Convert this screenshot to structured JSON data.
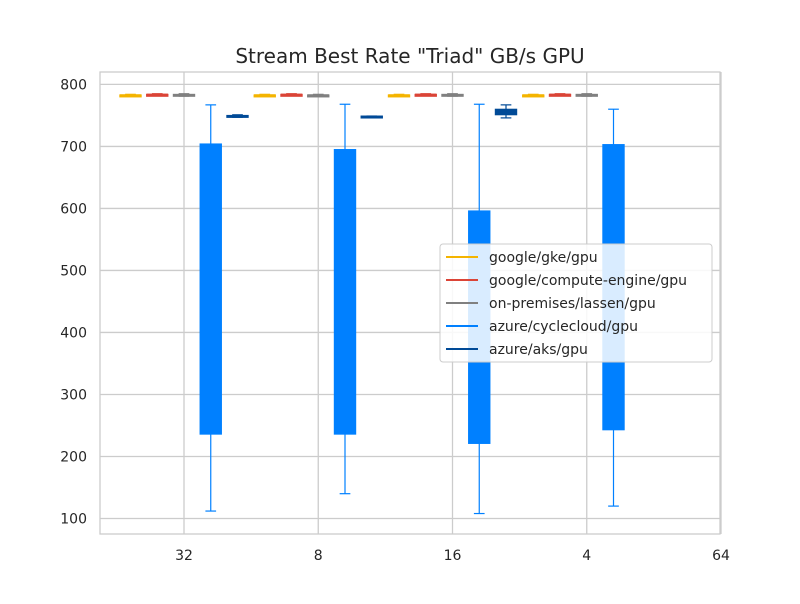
{
  "chart_data": {
    "type": "box",
    "title": "Stream Best Rate \"Triad\" GB/s GPU",
    "xlabel": "",
    "ylabel": "",
    "categories": [
      "32",
      "8",
      "16",
      "4",
      "64"
    ],
    "ylim": [
      75,
      820
    ],
    "yticks": [
      100,
      200,
      300,
      400,
      500,
      600,
      700,
      800
    ],
    "grid": true,
    "legend_position": "center-right",
    "series": [
      {
        "name": "google/gke/gpu",
        "color": "#f4b400",
        "boxes": [
          {
            "category": "32",
            "min": 782,
            "q1": 782,
            "median": 783,
            "q3": 783,
            "max": 784
          },
          {
            "category": "8",
            "min": 782,
            "q1": 782,
            "median": 783,
            "q3": 783,
            "max": 784
          },
          {
            "category": "16",
            "min": 782,
            "q1": 782,
            "median": 783,
            "q3": 783,
            "max": 784
          },
          {
            "category": "4",
            "min": 782,
            "q1": 782,
            "median": 783,
            "q3": 783,
            "max": 784
          }
        ]
      },
      {
        "name": "google/compute-engine/gpu",
        "color": "#db4437",
        "boxes": [
          {
            "category": "32",
            "min": 782,
            "q1": 783,
            "median": 784,
            "q3": 784,
            "max": 785
          },
          {
            "category": "8",
            "min": 782,
            "q1": 783,
            "median": 784,
            "q3": 784,
            "max": 785
          },
          {
            "category": "16",
            "min": 782,
            "q1": 783,
            "median": 784,
            "q3": 784,
            "max": 785
          },
          {
            "category": "4",
            "min": 782,
            "q1": 783,
            "median": 784,
            "q3": 784,
            "max": 785
          }
        ]
      },
      {
        "name": "on-premises/lassen/gpu",
        "color": "#808080",
        "boxes": [
          {
            "category": "32",
            "min": 781,
            "q1": 782,
            "median": 783,
            "q3": 784,
            "max": 785
          },
          {
            "category": "8",
            "min": 781,
            "q1": 782,
            "median": 783,
            "q3": 783,
            "max": 784
          },
          {
            "category": "16",
            "min": 781,
            "q1": 782,
            "median": 783,
            "q3": 784,
            "max": 785
          },
          {
            "category": "4",
            "min": 781,
            "q1": 782,
            "median": 783,
            "q3": 784,
            "max": 785
          }
        ]
      },
      {
        "name": "azure/cyclecloud/gpu",
        "color": "#0080ff",
        "boxes": [
          {
            "category": "32",
            "min": 112,
            "q1": 236,
            "median": 470,
            "q3": 704,
            "max": 767
          },
          {
            "category": "8",
            "min": 140,
            "q1": 236,
            "median": 465,
            "q3": 695,
            "max": 768
          },
          {
            "category": "16",
            "min": 108,
            "q1": 221,
            "median": 410,
            "q3": 596,
            "max": 768
          },
          {
            "category": "4",
            "min": 120,
            "q1": 243,
            "median": 470,
            "q3": 703,
            "max": 760
          }
        ]
      },
      {
        "name": "azure/aks/gpu",
        "color": "#004a97",
        "boxes": [
          {
            "category": "32",
            "min": 747,
            "q1": 748,
            "median": 749,
            "q3": 750,
            "max": 751
          },
          {
            "category": "8",
            "min": 747,
            "q1": 748,
            "median": 748,
            "q3": 749,
            "max": 749
          },
          {
            "category": "16",
            "min": 746,
            "q1": 751,
            "median": 756,
            "q3": 760,
            "max": 767
          }
        ]
      }
    ]
  }
}
